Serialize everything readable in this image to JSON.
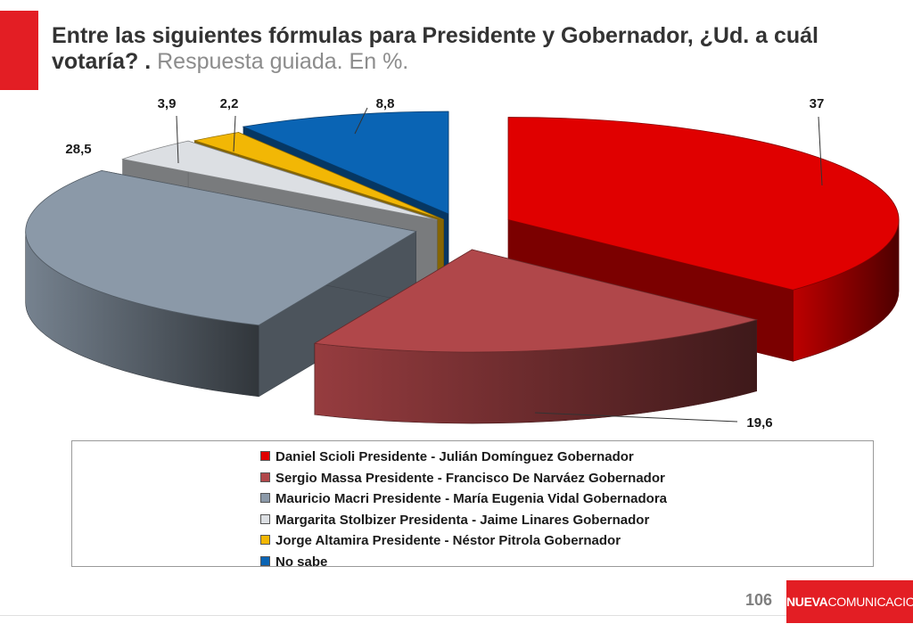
{
  "title": {
    "main": "Entre las siguientes fórmulas para Presidente y Gobernador, ¿Ud. a cuál votaría? .",
    "sub": "Respuesta guiada. En %."
  },
  "chart_data": {
    "type": "pie",
    "series": [
      {
        "name": "Daniel Scioli Presidente - Julián Domínguez Gobernador",
        "label": "37",
        "value": 37,
        "color": "#e00000"
      },
      {
        "name": "Sergio Massa Presidente - Francisco De Narváez Gobernador",
        "label": "19,6",
        "value": 19.6,
        "color": "#b0474a"
      },
      {
        "name": "Mauricio Macri Presidente - María Eugenia Vidal Gobernadora",
        "label": "28,5",
        "value": 28.5,
        "color": "#8b99a8"
      },
      {
        "name": "Margarita Stolbizer Presidenta - Jaime Linares Gobernador",
        "label": "3,9",
        "value": 3.9,
        "color": "#dcdfe3"
      },
      {
        "name": "Jorge Altamira Presidente - Néstor Pitrola Gobernador",
        "label": "2,2",
        "value": 2.2,
        "color": "#f2b705"
      },
      {
        "name": "No sabe",
        "label": "8,8",
        "value": 8.8,
        "color": "#0a64b4"
      }
    ],
    "exploded": true,
    "legend_position": "bottom"
  },
  "footer": {
    "page_number": "106",
    "logo_bold": "NUEVA",
    "logo_thin": "COMUNICACION"
  }
}
